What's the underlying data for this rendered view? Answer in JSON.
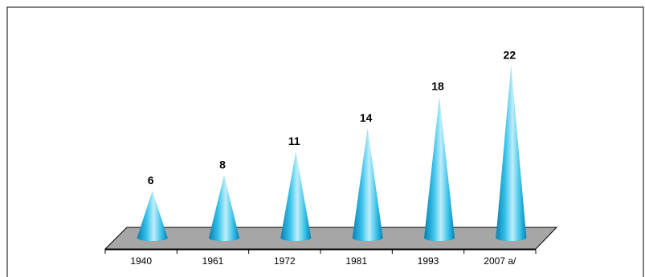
{
  "chart_data": {
    "type": "bar",
    "style": "cone",
    "categories": [
      "1940",
      "1961",
      "1972",
      "1981",
      "1993",
      "2007 a/"
    ],
    "values": [
      6,
      8,
      11,
      14,
      18,
      22
    ],
    "title": "",
    "xlabel": "",
    "ylabel": "",
    "ylim": [
      0,
      22
    ],
    "grid": false,
    "legend": "none",
    "colors": {
      "cone_light": "#bdeefb",
      "cone_mid": "#35c0e8",
      "cone_dark": "#0a7fb0",
      "floor": "#a6a6a6",
      "floor_edge": "#000000",
      "frame": "#000000"
    }
  }
}
